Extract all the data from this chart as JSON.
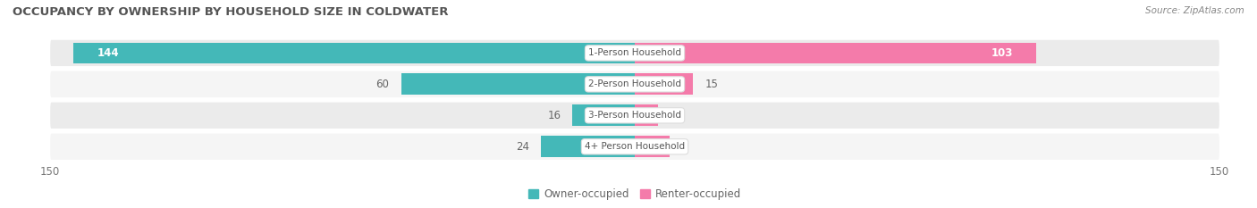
{
  "title": "OCCUPANCY BY OWNERSHIP BY HOUSEHOLD SIZE IN COLDWATER",
  "source": "Source: ZipAtlas.com",
  "categories": [
    "1-Person Household",
    "2-Person Household",
    "3-Person Household",
    "4+ Person Household"
  ],
  "owner_values": [
    144,
    60,
    16,
    24
  ],
  "renter_values": [
    103,
    15,
    6,
    9
  ],
  "owner_color": "#44B8B8",
  "renter_color": "#F47BAA",
  "row_colors": [
    "#EBEBEB",
    "#F5F5F5",
    "#EBEBEB",
    "#F5F5F5"
  ],
  "axis_max": 150,
  "white_label_threshold": 80,
  "label_color_inside": "#FFFFFF",
  "label_color_outside": "#666666",
  "legend_owner": "Owner-occupied",
  "legend_renter": "Renter-occupied",
  "title_fontsize": 9.5,
  "source_fontsize": 7.5,
  "bar_label_fontsize": 8.5,
  "category_fontsize": 7.5,
  "axis_label_fontsize": 8.5,
  "legend_fontsize": 8.5
}
